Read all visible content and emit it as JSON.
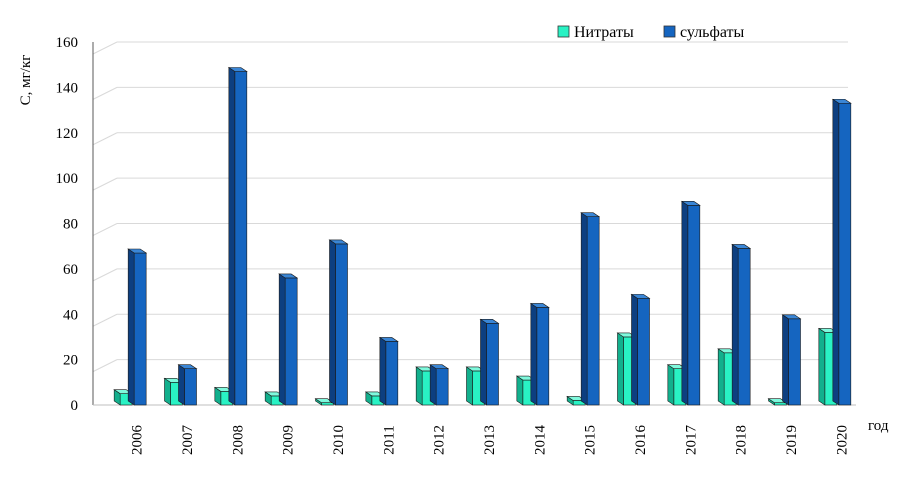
{
  "chart_data": {
    "type": "bar",
    "title": "",
    "xlabel": "год",
    "ylabel": "C, мг/кг",
    "ylim": [
      0,
      160
    ],
    "yticks": [
      0,
      20,
      40,
      60,
      80,
      100,
      120,
      140,
      160
    ],
    "grid": true,
    "legend_position": "top-right",
    "categories": [
      "2006",
      "2007",
      "2008",
      "2009",
      "2010",
      "2011",
      "2012",
      "2013",
      "2014",
      "2015",
      "2016",
      "2017",
      "2018",
      "2019",
      "2020"
    ],
    "series": [
      {
        "name": "Нитраты",
        "color": "#29f2c4",
        "values": [
          5,
          10,
          6,
          4,
          1,
          4,
          15,
          15,
          11,
          2,
          30,
          16,
          23,
          1,
          32
        ]
      },
      {
        "name": "сульфаты",
        "color": "#1565c0",
        "values": [
          67,
          16,
          147,
          56,
          71,
          28,
          16,
          36,
          43,
          83,
          47,
          88,
          69,
          38,
          133
        ]
      }
    ]
  }
}
